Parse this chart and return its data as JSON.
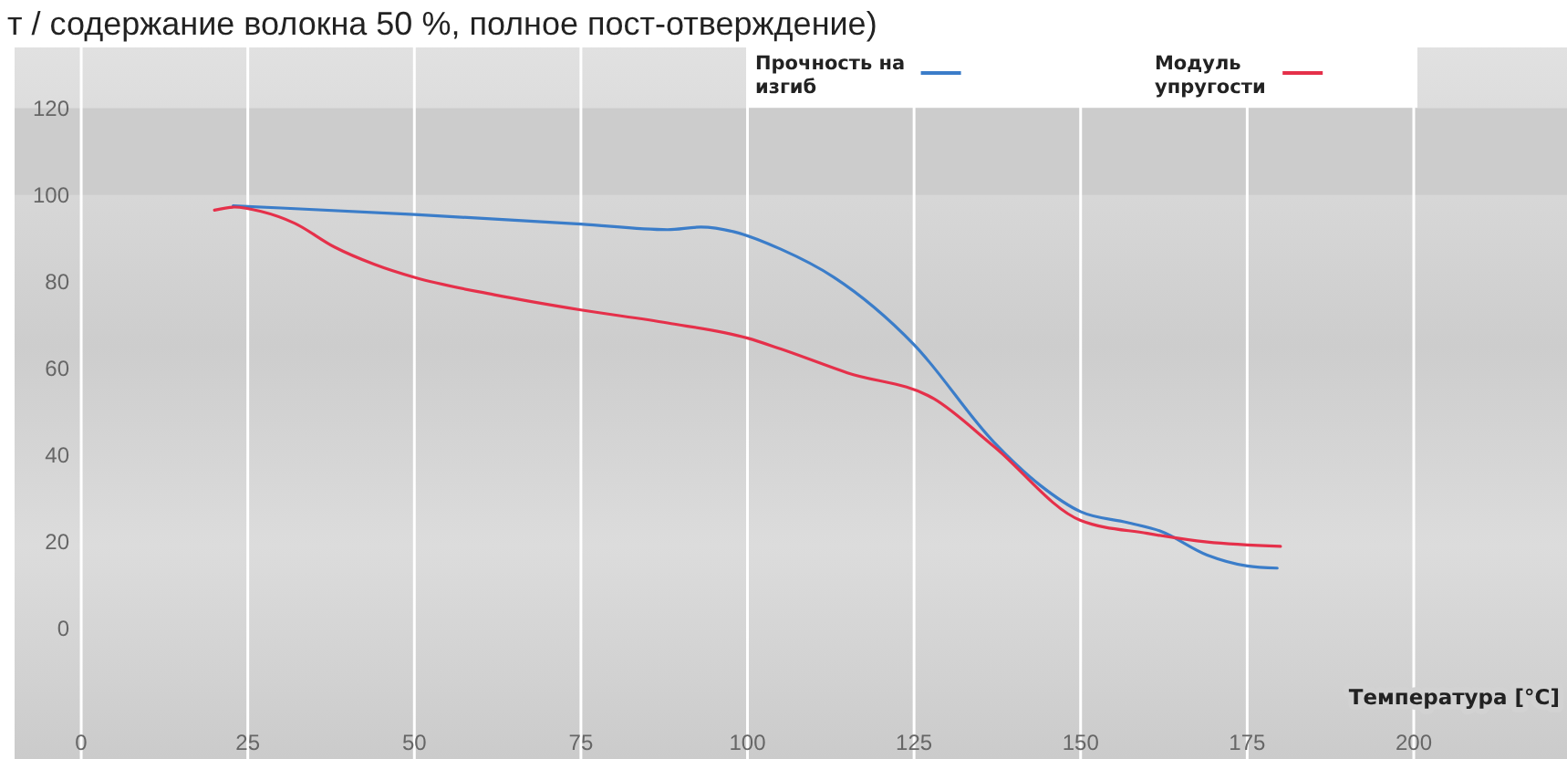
{
  "chart_data": {
    "type": "line",
    "title": "т / содержание волокна 50 %, полное пост-отверждение)",
    "xlabel": "Температура [°C]",
    "xlim": [
      -10,
      223
    ],
    "ylim": [
      -30,
      134
    ],
    "xticks": [
      0,
      25,
      50,
      75,
      100,
      125,
      150,
      175,
      200
    ],
    "yticks": [
      0,
      20,
      40,
      60,
      80,
      100,
      120
    ],
    "grid": "x",
    "legend": "top right",
    "bands": [
      {
        "axis": "y",
        "from": 100,
        "to": 120,
        "color": "#cccccc"
      }
    ],
    "series": [
      {
        "name": "Прочность на изгиб",
        "color": "#3b7dc9",
        "x": [
          22.8,
          30,
          50,
          75,
          88,
          93,
          98,
          105,
          113,
          125,
          137,
          144,
          150,
          157,
          162,
          169,
          175,
          179.5
        ],
        "values": [
          97.5,
          97,
          95.5,
          93.3,
          92,
          92.6,
          91.5,
          87.5,
          81,
          65.5,
          43,
          33,
          27,
          24.5,
          22.5,
          17,
          14.5,
          14
        ]
      },
      {
        "name": "Модуль упругости",
        "color": "#e5304a",
        "x": [
          20,
          23,
          27,
          32,
          38,
          44,
          50,
          62,
          75,
          88,
          100,
          105,
          115,
          128,
          137,
          150,
          160,
          169,
          180
        ],
        "values": [
          96.5,
          97.2,
          96.2,
          93.5,
          88,
          84,
          81,
          77,
          73.5,
          70.5,
          67,
          64.5,
          59,
          53,
          42,
          25,
          22,
          20,
          19
        ]
      }
    ]
  }
}
